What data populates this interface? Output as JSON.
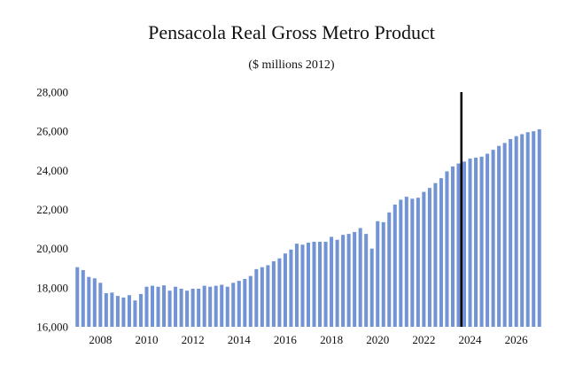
{
  "chart_data": {
    "type": "bar",
    "title": "Pensacola Real Gross Metro Product",
    "subtitle": "($ millions 2012)",
    "xlabel": "",
    "ylabel": "",
    "ylim": [
      16000,
      28000
    ],
    "yticks": [
      16000,
      18000,
      20000,
      22000,
      24000,
      26000,
      28000
    ],
    "ytick_labels": [
      "16,000",
      "18,000",
      "20,000",
      "22,000",
      "24,000",
      "26,000",
      "28,000"
    ],
    "xtick_labels": [
      "2008",
      "2010",
      "2012",
      "2014",
      "2016",
      "2018",
      "2020",
      "2022",
      "2024",
      "2026"
    ],
    "bar_color": "#7294d4",
    "marker_color": "#000000",
    "forecast_start_label": "2023Q4",
    "categories": [
      "2007Q1",
      "2007Q2",
      "2007Q3",
      "2007Q4",
      "2008Q1",
      "2008Q2",
      "2008Q3",
      "2008Q4",
      "2009Q1",
      "2009Q2",
      "2009Q3",
      "2009Q4",
      "2010Q1",
      "2010Q2",
      "2010Q3",
      "2010Q4",
      "2011Q1",
      "2011Q2",
      "2011Q3",
      "2011Q4",
      "2012Q1",
      "2012Q2",
      "2012Q3",
      "2012Q4",
      "2013Q1",
      "2013Q2",
      "2013Q3",
      "2013Q4",
      "2014Q1",
      "2014Q2",
      "2014Q3",
      "2014Q4",
      "2015Q1",
      "2015Q2",
      "2015Q3",
      "2015Q4",
      "2016Q1",
      "2016Q2",
      "2016Q3",
      "2016Q4",
      "2017Q1",
      "2017Q2",
      "2017Q3",
      "2017Q4",
      "2018Q1",
      "2018Q2",
      "2018Q3",
      "2018Q4",
      "2019Q1",
      "2019Q2",
      "2019Q3",
      "2019Q4",
      "2020Q1",
      "2020Q2",
      "2020Q3",
      "2020Q4",
      "2021Q1",
      "2021Q2",
      "2021Q3",
      "2021Q4",
      "2022Q1",
      "2022Q2",
      "2022Q3",
      "2022Q4",
      "2023Q1",
      "2023Q2",
      "2023Q3",
      "2023Q4",
      "2024Q1",
      "2024Q2",
      "2024Q3",
      "2024Q4",
      "2025Q1",
      "2025Q2",
      "2025Q3",
      "2025Q4",
      "2026Q1",
      "2026Q2",
      "2026Q3",
      "2026Q4",
      "2027Q1"
    ],
    "values": [
      19050,
      18900,
      18550,
      18480,
      18250,
      17720,
      17750,
      17580,
      17500,
      17620,
      17350,
      17680,
      18050,
      18100,
      18050,
      18120,
      17850,
      18050,
      17950,
      17850,
      17950,
      17950,
      18100,
      18050,
      18100,
      18150,
      18050,
      18250,
      18350,
      18450,
      18600,
      18950,
      19050,
      19150,
      19350,
      19500,
      19750,
      19950,
      20250,
      20200,
      20300,
      20350,
      20350,
      20350,
      20600,
      20450,
      20700,
      20750,
      20850,
      21050,
      20750,
      20000,
      21400,
      21350,
      21850,
      22250,
      22500,
      22650,
      22550,
      22600,
      22900,
      23100,
      23350,
      23600,
      23950,
      24200,
      24350,
      24450,
      24600,
      24650,
      24700,
      24850,
      25050,
      25250,
      25400,
      25600,
      25750,
      25850,
      25950,
      26000,
      26100
    ]
  }
}
